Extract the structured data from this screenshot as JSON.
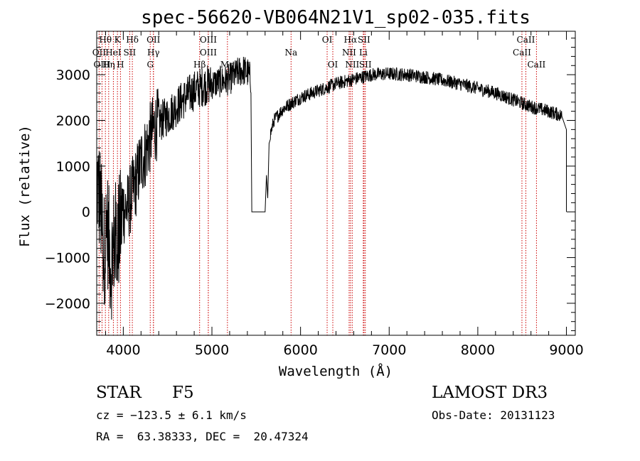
{
  "chart_data": {
    "type": "line",
    "title": "spec-56620-VB064N21V1_sp02-035.fits",
    "xlabel": "Wavelength (Å)",
    "ylabel": "Flux (relative)",
    "xlim": [
      3700,
      9100
    ],
    "ylim": [
      -2700,
      3950
    ],
    "x_ticks": [
      4000,
      5000,
      6000,
      7000,
      8000,
      9000
    ],
    "y_ticks": [
      -2000,
      -1000,
      0,
      1000,
      2000,
      3000
    ],
    "y_tick_labels": [
      "−2000",
      "−1000",
      "0",
      "1000",
      "2000",
      "3000"
    ],
    "line_color": "#000000",
    "marker_color": "#cc0000",
    "spectrum_knots": [
      [
        3700,
        700
      ],
      [
        3740,
        200
      ],
      [
        3780,
        -900
      ],
      [
        3820,
        -300
      ],
      [
        3860,
        -1200
      ],
      [
        3900,
        -600
      ],
      [
        3950,
        -500
      ],
      [
        4000,
        50
      ],
      [
        4050,
        100
      ],
      [
        4100,
        400
      ],
      [
        4150,
        700
      ],
      [
        4200,
        1100
      ],
      [
        4250,
        1300
      ],
      [
        4300,
        1600
      ],
      [
        4350,
        1850
      ],
      [
        4400,
        1950
      ],
      [
        4500,
        2100
      ],
      [
        4600,
        2300
      ],
      [
        4700,
        2500
      ],
      [
        4800,
        2650
      ],
      [
        4900,
        2750
      ],
      [
        5000,
        2800
      ],
      [
        5100,
        2850
      ],
      [
        5200,
        2900
      ],
      [
        5300,
        3050
      ],
      [
        5350,
        3100
      ],
      [
        5400,
        3050
      ],
      [
        5440,
        2900
      ]
    ],
    "spectrum_knots_2": [
      [
        5660,
        1700
      ],
      [
        5700,
        2000
      ],
      [
        5800,
        2250
      ],
      [
        5900,
        2380
      ],
      [
        6000,
        2500
      ],
      [
        6200,
        2650
      ],
      [
        6400,
        2800
      ],
      [
        6600,
        2900
      ],
      [
        6800,
        3000
      ],
      [
        7000,
        3020
      ],
      [
        7200,
        3000
      ],
      [
        7400,
        2950
      ],
      [
        7600,
        2880
      ],
      [
        7800,
        2800
      ],
      [
        8000,
        2700
      ],
      [
        8200,
        2600
      ],
      [
        8400,
        2450
      ],
      [
        8600,
        2300
      ],
      [
        8800,
        2200
      ],
      [
        8950,
        2100
      ],
      [
        9000,
        1800
      ]
    ],
    "gap_range": [
      5450,
      5600
    ],
    "lines": [
      {
        "name": "Hθ",
        "wave": 3798,
        "row": 0
      },
      {
        "name": "K",
        "wave": 3934,
        "row": 0
      },
      {
        "name": "Hδ",
        "wave": 4102,
        "row": 0
      },
      {
        "name": "OII",
        "wave": 4340,
        "row": 0
      },
      {
        "name": "OIII",
        "wave": 4959,
        "row": 0
      },
      {
        "name": "OI",
        "wave": 6300,
        "row": 0
      },
      {
        "name": "Hα",
        "wave": 6563,
        "row": 0
      },
      {
        "name": "SII",
        "wave": 6716,
        "row": 0
      },
      {
        "name": "CaII",
        "wave": 8542,
        "row": 0
      },
      {
        "name": "OII",
        "wave": 3727,
        "row": 1
      },
      {
        "name": "HeI",
        "wave": 3888,
        "row": 1
      },
      {
        "name": "SII",
        "wave": 4072,
        "row": 1
      },
      {
        "name": "Hγ",
        "wave": 4340,
        "row": 1
      },
      {
        "name": "OIII",
        "wave": 4959,
        "row": 1
      },
      {
        "name": "Na",
        "wave": 5893,
        "row": 1
      },
      {
        "name": "NII",
        "wave": 6548,
        "row": 1
      },
      {
        "name": "Li",
        "wave": 6708,
        "row": 1
      },
      {
        "name": "CaII",
        "wave": 8498,
        "row": 1
      },
      {
        "name": "OIII",
        "wave": 3760,
        "row": 2
      },
      {
        "name": "Hη",
        "wave": 3835,
        "row": 2
      },
      {
        "name": "H",
        "wave": 3968,
        "row": 2
      },
      {
        "name": "G",
        "wave": 4304,
        "row": 2
      },
      {
        "name": "Hβ",
        "wave": 4861,
        "row": 2
      },
      {
        "name": "Mg",
        "wave": 5175,
        "row": 2
      },
      {
        "name": "OI",
        "wave": 6364,
        "row": 2
      },
      {
        "name": "NII",
        "wave": 6583,
        "row": 2
      },
      {
        "name": "SII",
        "wave": 6731,
        "row": 2
      },
      {
        "name": "CaII",
        "wave": 8662,
        "row": 2
      }
    ]
  },
  "info": {
    "class_label": "STAR",
    "subclass_label": "F5",
    "survey": "LAMOST DR3",
    "cz_text": "cz = −123.5 ± 6.1 km/s",
    "obs_date_text": "Obs-Date: 20131123",
    "radec_text": "RA =  63.38333, DEC =  20.47324"
  }
}
